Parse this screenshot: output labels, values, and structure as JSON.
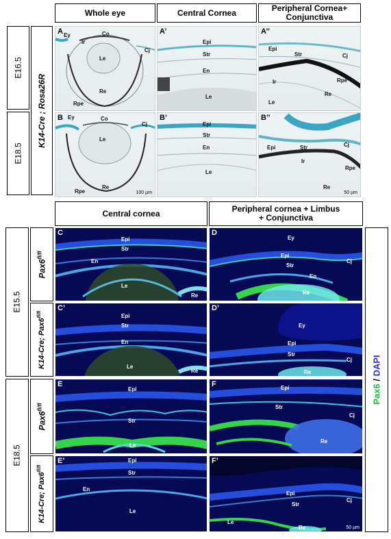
{
  "top": {
    "columns": [
      "Whole eye",
      "Central Cornea",
      "Peripheral Cornea+\nConjunctiva"
    ],
    "rows": [
      "E16.5",
      "E18.5"
    ],
    "genotype": "K14-Cre ; Rosa26R",
    "panels": {
      "A": {
        "label": "A",
        "tissues": [
          "Ey",
          "Co",
          "Cj",
          "Ir",
          "Le",
          "Re",
          "Rpe"
        ]
      },
      "A1": {
        "label": "A’",
        "tissues": [
          "Epi",
          "Str",
          "En",
          "Le"
        ]
      },
      "A2": {
        "label": "A’’",
        "tissues": [
          "Epi",
          "Str",
          "Cj",
          "Ir",
          "Rpe",
          "Re",
          "Le"
        ]
      },
      "B": {
        "label": "B",
        "tissues": [
          "Ey",
          "Co",
          "Cj",
          "Le",
          "Rpe",
          "Re"
        ],
        "scale": "100 µm"
      },
      "B1": {
        "label": "B’",
        "tissues": [
          "Epi",
          "Str",
          "En",
          "Le"
        ]
      },
      "B2": {
        "label": "B’’",
        "tissues": [
          "Cj",
          "Epi",
          "Str",
          "Ir",
          "Rpe",
          "Re"
        ],
        "scale": "50 µm"
      }
    }
  },
  "bottom": {
    "columns": [
      "Central cornea",
      "Peripheral cornea + Limbus\n+ Conjunctiva"
    ],
    "stages": [
      "E15.5",
      "E18.5"
    ],
    "genotypes": {
      "control_base": "Pax6",
      "control_sup": "fl/fl",
      "mutant_base": "K14-Cre; Pax6",
      "mutant_sup": "fl/fl"
    },
    "stain": {
      "marker": "Pax6",
      "sep": " / ",
      "counter": "DAPI",
      "marker_color": "#1fbf3a",
      "counter_color": "#2a35c8"
    },
    "panels": {
      "C": {
        "label": "C",
        "tissues": [
          "Epi",
          "Str",
          "En",
          "Le",
          "Re"
        ]
      },
      "D": {
        "label": "D",
        "tissues": [
          "Ey",
          "Epi",
          "Str",
          "Cj",
          "En",
          "Re"
        ]
      },
      "C1": {
        "label": "C’",
        "tissues": [
          "Epi",
          "Str",
          "En",
          "Le",
          "Re"
        ]
      },
      "D1": {
        "label": "D’",
        "tissues": [
          "Ey",
          "Epi",
          "Str",
          "Cj",
          "Re"
        ]
      },
      "E": {
        "label": "E",
        "tissues": [
          "Epi",
          "Str",
          "Le"
        ]
      },
      "F": {
        "label": "F",
        "tissues": [
          "Epi",
          "Str",
          "Cj",
          "Re"
        ]
      },
      "E1": {
        "label": "E’",
        "tissues": [
          "Epi",
          "Str",
          "En",
          "Le"
        ]
      },
      "F1": {
        "label": "F’",
        "tissues": [
          "Epi",
          "Str",
          "Cj",
          "Le",
          "Re"
        ],
        "scale": "50 µm"
      }
    }
  }
}
